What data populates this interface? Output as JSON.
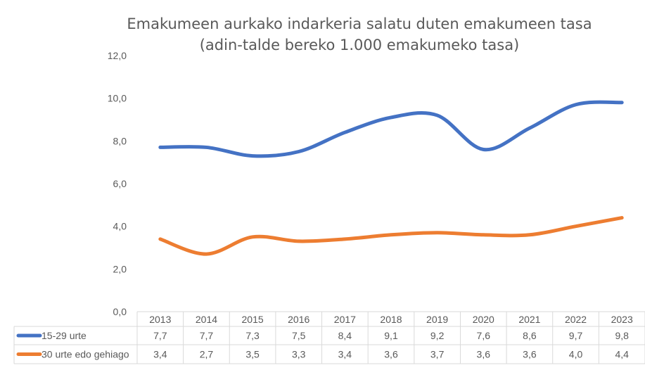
{
  "chart_data": {
    "type": "line",
    "title_line1": "Emakumeen aurkako indarkeria salatu duten emakumeen tasa",
    "title_line2": "(adin-talde bereko 1.000 emakumeko tasa)",
    "categories": [
      "2013",
      "2014",
      "2015",
      "2016",
      "2017",
      "2018",
      "2019",
      "2020",
      "2021",
      "2022",
      "2023"
    ],
    "y_ticks": [
      "0,0",
      "2,0",
      "4,0",
      "6,0",
      "8,0",
      "10,0",
      "12,0"
    ],
    "ylim": [
      0,
      12
    ],
    "series": [
      {
        "name": "15-29 urte",
        "color": "#4472C4",
        "values": [
          7.7,
          7.7,
          7.3,
          7.5,
          8.4,
          9.1,
          9.2,
          7.6,
          8.6,
          9.7,
          9.8
        ],
        "labels": [
          "7,7",
          "7,7",
          "7,3",
          "7,5",
          "8,4",
          "9,1",
          "9,2",
          "7,6",
          "8,6",
          "9,7",
          "9,8"
        ]
      },
      {
        "name": "30 urte edo gehiago",
        "color": "#ED7D31",
        "values": [
          3.4,
          2.7,
          3.5,
          3.3,
          3.4,
          3.6,
          3.7,
          3.6,
          3.6,
          4.0,
          4.4
        ],
        "labels": [
          "3,4",
          "2,7",
          "3,5",
          "3,3",
          "3,4",
          "3,6",
          "3,7",
          "3,6",
          "3,6",
          "4,0",
          "4,4"
        ]
      }
    ],
    "data_table": true,
    "legend": "data-table-left"
  }
}
